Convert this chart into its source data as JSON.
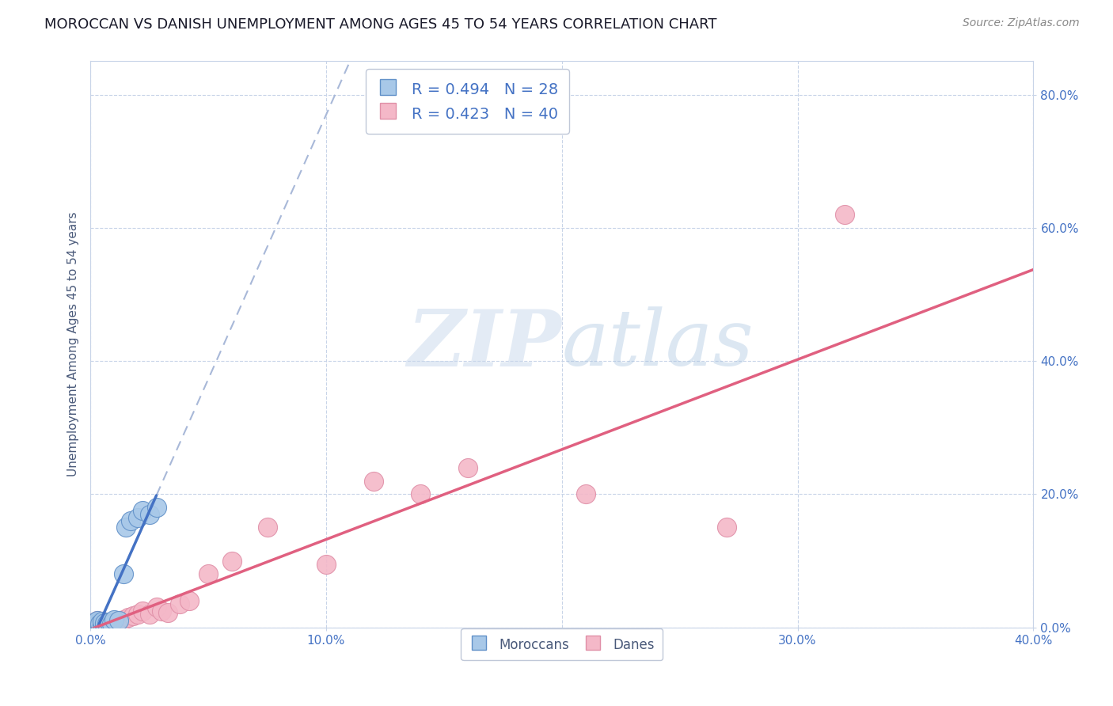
{
  "title": "MOROCCAN VS DANISH UNEMPLOYMENT AMONG AGES 45 TO 54 YEARS CORRELATION CHART",
  "source": "Source: ZipAtlas.com",
  "xlim": [
    0.0,
    0.4
  ],
  "ylim": [
    0.0,
    0.85
  ],
  "x_tick_vals": [
    0.0,
    0.1,
    0.2,
    0.3,
    0.4
  ],
  "y_tick_vals": [
    0.0,
    0.2,
    0.4,
    0.6,
    0.8
  ],
  "moroccans_x": [
    0.0005,
    0.001,
    0.001,
    0.0015,
    0.002,
    0.002,
    0.0025,
    0.003,
    0.003,
    0.003,
    0.004,
    0.004,
    0.005,
    0.005,
    0.006,
    0.006,
    0.007,
    0.008,
    0.009,
    0.01,
    0.012,
    0.014,
    0.015,
    0.017,
    0.02,
    0.022,
    0.025,
    0.028
  ],
  "moroccans_y": [
    0.001,
    0.003,
    0.006,
    0.002,
    0.004,
    0.008,
    0.005,
    0.003,
    0.007,
    0.01,
    0.002,
    0.006,
    0.004,
    0.009,
    0.003,
    0.007,
    0.005,
    0.008,
    0.006,
    0.012,
    0.01,
    0.08,
    0.15,
    0.16,
    0.165,
    0.175,
    0.17,
    0.18
  ],
  "danes_x": [
    0.0005,
    0.001,
    0.001,
    0.0015,
    0.002,
    0.002,
    0.003,
    0.003,
    0.004,
    0.004,
    0.005,
    0.005,
    0.006,
    0.006,
    0.007,
    0.008,
    0.009,
    0.01,
    0.012,
    0.014,
    0.016,
    0.018,
    0.02,
    0.022,
    0.025,
    0.028,
    0.03,
    0.033,
    0.038,
    0.042,
    0.05,
    0.06,
    0.075,
    0.1,
    0.12,
    0.14,
    0.16,
    0.21,
    0.27,
    0.32
  ],
  "danes_y": [
    0.001,
    0.003,
    0.006,
    0.002,
    0.004,
    0.008,
    0.005,
    0.01,
    0.003,
    0.007,
    0.002,
    0.009,
    0.004,
    0.006,
    0.003,
    0.005,
    0.008,
    0.007,
    0.01,
    0.012,
    0.015,
    0.018,
    0.02,
    0.025,
    0.02,
    0.03,
    0.025,
    0.022,
    0.035,
    0.04,
    0.08,
    0.1,
    0.15,
    0.095,
    0.22,
    0.2,
    0.24,
    0.2,
    0.15,
    0.62
  ],
  "moroccan_color": "#a8c8e8",
  "dane_color": "#f4b8c8",
  "moroccan_edge_color": "#6090c8",
  "dane_edge_color": "#e090a8",
  "moroccan_line_color": "#4472c4",
  "dane_line_color": "#e06080",
  "R_moroccan": 0.494,
  "N_moroccan": 28,
  "R_dane": 0.423,
  "N_dane": 40,
  "watermark_zip": "ZIP",
  "watermark_atlas": "atlas",
  "background_color": "#ffffff",
  "grid_color": "#c8d4e8",
  "ylabel": "Unemployment Among Ages 45 to 54 years",
  "title_fontsize": 13,
  "source_fontsize": 10,
  "tick_fontsize": 11,
  "ylabel_fontsize": 11,
  "legend_fontsize": 14
}
